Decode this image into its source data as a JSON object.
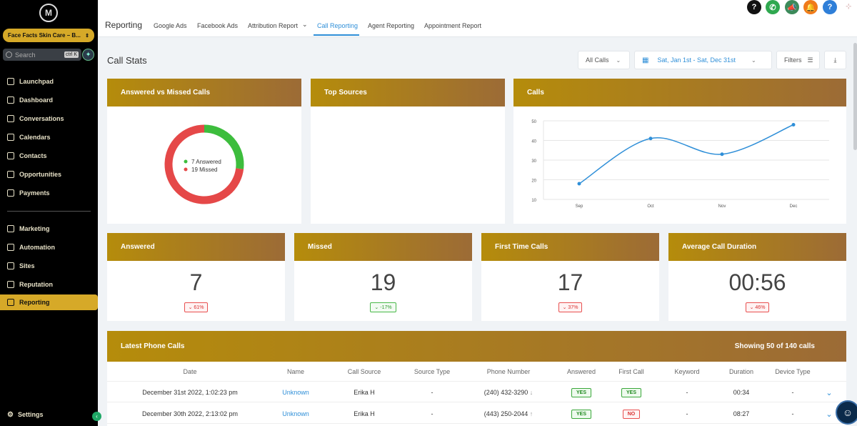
{
  "sidebar": {
    "logo": "M",
    "account": "Face Facts Skin Care – B...",
    "search_placeholder": "Search",
    "search_shortcut": "ctrl K",
    "items": [
      {
        "label": "Launchpad",
        "icon": "rocket-icon"
      },
      {
        "label": "Dashboard",
        "icon": "dashboard-icon"
      },
      {
        "label": "Conversations",
        "icon": "chat-icon"
      },
      {
        "label": "Calendars",
        "icon": "calendar-icon"
      },
      {
        "label": "Contacts",
        "icon": "contacts-icon"
      },
      {
        "label": "Opportunities",
        "icon": "opportunities-icon"
      },
      {
        "label": "Payments",
        "icon": "payments-icon"
      },
      {
        "label": "Marketing",
        "icon": "send-icon"
      },
      {
        "label": "Automation",
        "icon": "automation-icon"
      },
      {
        "label": "Sites",
        "icon": "sites-icon"
      },
      {
        "label": "Reputation",
        "icon": "star-icon"
      },
      {
        "label": "Reporting",
        "icon": "chart-icon"
      }
    ],
    "settings_label": "Settings"
  },
  "topbar": {
    "title": "Reporting",
    "tabs": [
      {
        "label": "Google Ads"
      },
      {
        "label": "Facebook Ads"
      },
      {
        "label": "Attribution Report"
      },
      {
        "label": "Call Reporting"
      },
      {
        "label": "Agent Reporting"
      },
      {
        "label": "Appointment Report"
      }
    ],
    "active_tab": "Call Reporting"
  },
  "header_icons": [
    {
      "icon": "help-icon",
      "color": "#111111",
      "glyph": "?"
    },
    {
      "icon": "phone-icon",
      "color": "#2fa84f",
      "glyph": "✆"
    },
    {
      "icon": "megaphone-icon",
      "color": "#3c8a5a",
      "glyph": "📣"
    },
    {
      "icon": "bell-icon",
      "color": "#f07a1a",
      "glyph": "🔔"
    },
    {
      "icon": "question-icon",
      "color": "#2f7fd8",
      "glyph": "?"
    }
  ],
  "main": {
    "title": "Call Stats",
    "filter_calls": "All Calls",
    "date_range": "Sat, Jan 1st - Sat, Dec 31st",
    "filters_label": "Filters"
  },
  "cards": {
    "answered_vs_missed": {
      "title": "Answered vs Missed Calls",
      "legend_answered": "7 Answered",
      "legend_missed": "19 Missed"
    },
    "top_sources": {
      "title": "Top Sources"
    },
    "calls": {
      "title": "Calls"
    }
  },
  "chart_data": [
    {
      "type": "pie",
      "labels": [
        "Answered",
        "Missed"
      ],
      "values": [
        7,
        19
      ],
      "colors": [
        "#3dbd3d",
        "#e54848"
      ]
    },
    {
      "type": "line",
      "x": [
        "Sep",
        "Oct",
        "Nov",
        "Dec"
      ],
      "series": [
        {
          "values": [
            18,
            41,
            33,
            48
          ]
        }
      ],
      "ylim": [
        10,
        50
      ],
      "yticks": [
        10,
        20,
        30,
        40,
        50
      ],
      "grid": true,
      "color": "#2f8fd8"
    }
  ],
  "stats": [
    {
      "title": "Answered",
      "value": "7",
      "change": "61%",
      "trend": "down",
      "tone": "red"
    },
    {
      "title": "Missed",
      "value": "19",
      "change": "-17%",
      "trend": "down",
      "tone": "green"
    },
    {
      "title": "First Time Calls",
      "value": "17",
      "change": "37%",
      "trend": "down",
      "tone": "red"
    },
    {
      "title": "Average Call Duration",
      "value": "00:56",
      "change": "46%",
      "trend": "down",
      "tone": "red"
    }
  ],
  "table": {
    "title": "Latest Phone Calls",
    "showing_prefix": "Showing ",
    "showing_count": "50",
    "showing_mid": " of ",
    "showing_total": "140",
    "showing_suffix": " calls",
    "columns": [
      "Date",
      "Name",
      "Call Source",
      "Source Type",
      "Phone Number",
      "Answered",
      "First Call",
      "Keyword",
      "Duration",
      "Device Type"
    ],
    "rows": [
      {
        "date": "December 31st 2022, 1:02:23 pm",
        "name": "Unknown",
        "source": "Erika H",
        "source_type": "-",
        "phone": "(240) 432-3290",
        "direction": "↓",
        "answered": "YES",
        "first_call": "YES",
        "keyword": "-",
        "duration": "00:34",
        "device": "-"
      },
      {
        "date": "December 30th 2022, 2:13:02 pm",
        "name": "Unknown",
        "source": "Erika H",
        "source_type": "-",
        "phone": "(443) 250-2044",
        "direction": "↑",
        "answered": "YES",
        "first_call": "NO",
        "keyword": "-",
        "duration": "08:27",
        "device": "-"
      }
    ]
  }
}
